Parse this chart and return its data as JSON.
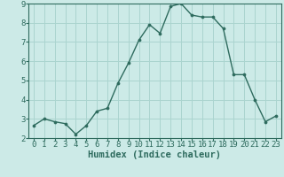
{
  "x": [
    0,
    1,
    2,
    3,
    4,
    5,
    6,
    7,
    8,
    9,
    10,
    11,
    12,
    13,
    14,
    15,
    16,
    17,
    18,
    19,
    20,
    21,
    22,
    23
  ],
  "y": [
    2.65,
    3.0,
    2.85,
    2.75,
    2.2,
    2.65,
    3.4,
    3.55,
    4.85,
    5.9,
    7.1,
    7.9,
    7.45,
    8.85,
    9.0,
    8.4,
    8.3,
    8.3,
    7.7,
    5.3,
    5.3,
    4.0,
    2.85,
    3.15
  ],
  "line_color": "#2e6b5e",
  "marker": "o",
  "marker_size": 2.2,
  "bg_color": "#cceae7",
  "grid_color": "#aad4cf",
  "xlabel": "Humidex (Indice chaleur)",
  "ylim": [
    2,
    9
  ],
  "xlim": [
    -0.5,
    23.5
  ],
  "yticks": [
    2,
    3,
    4,
    5,
    6,
    7,
    8,
    9
  ],
  "xticks": [
    0,
    1,
    2,
    3,
    4,
    5,
    6,
    7,
    8,
    9,
    10,
    11,
    12,
    13,
    14,
    15,
    16,
    17,
    18,
    19,
    20,
    21,
    22,
    23
  ],
  "xlabel_fontsize": 7.5,
  "tick_fontsize": 6.5,
  "line_width": 1.0
}
